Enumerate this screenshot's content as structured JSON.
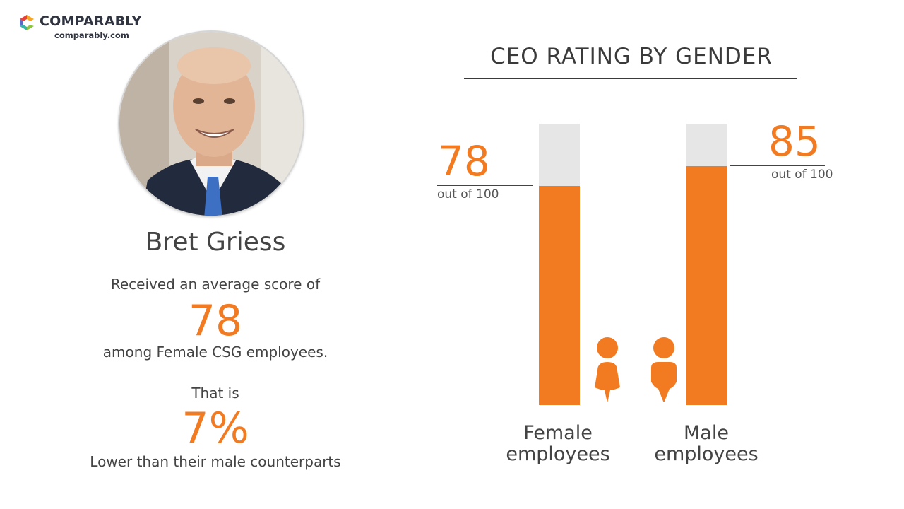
{
  "brand": {
    "name": "COMPARABLY",
    "url": "comparably.com",
    "colors": [
      "#f6a623",
      "#e8413c",
      "#35b6a6",
      "#5b6ac2"
    ]
  },
  "profile": {
    "name": "Bret Griess",
    "line1": "Received an average score of",
    "score": "78",
    "line2": "among Female CSG employees.",
    "line3": "That is",
    "diff": "7%",
    "line4": "Lower than their male counterparts"
  },
  "accent_color": "#f27b21",
  "chart_data": {
    "type": "bar",
    "title": "CEO RATING BY GENDER",
    "categories": [
      "Female employees",
      "Male employees"
    ],
    "category_lines": [
      [
        "Female",
        "employees"
      ],
      [
        "Male",
        "employees"
      ]
    ],
    "values": [
      78,
      85
    ],
    "value_labels": [
      "78",
      "85"
    ],
    "value_suffix": "out of 100",
    "ylim": [
      0,
      100
    ],
    "icons": [
      "female-person-icon",
      "male-person-icon"
    ]
  }
}
